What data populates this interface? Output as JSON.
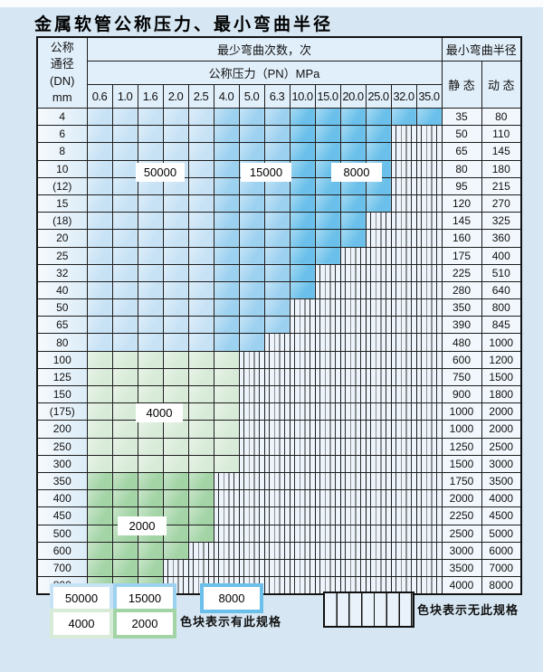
{
  "title": "金属软管公称压力、最小弯曲半径",
  "table": {
    "dn_header_lines": [
      "公称",
      "通径",
      "(DN)",
      "mm"
    ],
    "cycles_header": "最少弯曲次数，次",
    "pressure_header": "公称压力（PN）MPa",
    "radius_header": "最小弯曲半径",
    "static_label": "静 态",
    "dynamic_label": "动 态",
    "pressure_columns": [
      "0.6",
      "1.0",
      "1.6",
      "2.0",
      "2.5",
      "4.0",
      "5.0",
      "6.3",
      "10.0",
      "15.0",
      "20.0",
      "25.0",
      "32.0",
      "35.0"
    ],
    "cell_states": {
      "L": "50000次 (浅蓝)",
      "M": "15000次 (中蓝)",
      "D": "8000次 (深蓝)",
      "G": "4000次 (浅绿)",
      "H": "2000次 (中绿)",
      "X": "无此规格 (竖线)"
    },
    "rows": [
      {
        "dn": "4",
        "cells": "LLLLLMMMDDDDDD",
        "static": "35",
        "dynamic": "80"
      },
      {
        "dn": "6",
        "cells": "LLLLLMMMDDDDXX",
        "static": "50",
        "dynamic": "110"
      },
      {
        "dn": "8",
        "cells": "LLLLLMMMDDDDXX",
        "static": "65",
        "dynamic": "145"
      },
      {
        "dn": "10",
        "cells": "LLLLLMMMDDDDXX",
        "static": "80",
        "dynamic": "180"
      },
      {
        "dn": "(12)",
        "cells": "LLLLLMMMDDDDXX",
        "static": "95",
        "dynamic": "215"
      },
      {
        "dn": "15",
        "cells": "LLLLLMMMDDDDXX",
        "static": "120",
        "dynamic": "270"
      },
      {
        "dn": "(18)",
        "cells": "LLLLLMMMDDDXXX",
        "static": "145",
        "dynamic": "325"
      },
      {
        "dn": "20",
        "cells": "LLLLLMMMDDDXXX",
        "static": "160",
        "dynamic": "360"
      },
      {
        "dn": "25",
        "cells": "LLLLLMMMDDXXXX",
        "static": "175",
        "dynamic": "400"
      },
      {
        "dn": "32",
        "cells": "LLLLLMMMDXXXXX",
        "static": "225",
        "dynamic": "510"
      },
      {
        "dn": "40",
        "cells": "LLLLLMMMDXXXXX",
        "static": "280",
        "dynamic": "640"
      },
      {
        "dn": "50",
        "cells": "LLLLLMMMXXXXXX",
        "static": "350",
        "dynamic": "800"
      },
      {
        "dn": "65",
        "cells": "LLLLLMMMXXXXXX",
        "static": "390",
        "dynamic": "845"
      },
      {
        "dn": "80",
        "cells": "LLLLLMMXXXXXXX",
        "static": "480",
        "dynamic": "1000"
      },
      {
        "dn": "100",
        "cells": "GGGGGGXXXXXXXX",
        "static": "600",
        "dynamic": "1200"
      },
      {
        "dn": "125",
        "cells": "GGGGGGXXXXXXXX",
        "static": "750",
        "dynamic": "1500"
      },
      {
        "dn": "150",
        "cells": "GGGGGGXXXXXXXX",
        "static": "900",
        "dynamic": "1800"
      },
      {
        "dn": "(175)",
        "cells": "GGGGGGXXXXXXXX",
        "static": "1000",
        "dynamic": "2000"
      },
      {
        "dn": "200",
        "cells": "GGGGGGXXXXXXXX",
        "static": "1000",
        "dynamic": "2000"
      },
      {
        "dn": "250",
        "cells": "GGGGGGXXXXXXXX",
        "static": "1250",
        "dynamic": "2500"
      },
      {
        "dn": "300",
        "cells": "GGGGGGXXXXXXXX",
        "static": "1500",
        "dynamic": "3000"
      },
      {
        "dn": "350",
        "cells": "HHHHHXXXXXXXXX",
        "static": "1750",
        "dynamic": "3500"
      },
      {
        "dn": "400",
        "cells": "HHHHHXXXXXXXXX",
        "static": "2000",
        "dynamic": "4000"
      },
      {
        "dn": "450",
        "cells": "HHHHHXXXXXXXXX",
        "static": "2250",
        "dynamic": "4500"
      },
      {
        "dn": "500",
        "cells": "HHHHHXXXXXXXXX",
        "static": "2500",
        "dynamic": "5000"
      },
      {
        "dn": "600",
        "cells": "HHHHXXXXXXXXXX",
        "static": "3000",
        "dynamic": "6000"
      },
      {
        "dn": "700",
        "cells": "HHHXXXXXXXXXXX",
        "static": "3500",
        "dynamic": "7000"
      },
      {
        "dn": "800",
        "cells": "HHHXXXXXXXXXXX",
        "static": "4000",
        "dynamic": "8000"
      }
    ]
  },
  "overlays": [
    {
      "text": "50000"
    },
    {
      "text": "15000"
    },
    {
      "text": "8000"
    },
    {
      "text": "4000"
    },
    {
      "text": "2000"
    }
  ],
  "legend": {
    "items": [
      {
        "label": "50000",
        "swatch": "light_blue"
      },
      {
        "label": "15000",
        "swatch": "mid_blue"
      },
      {
        "label": "8000",
        "swatch": "dark_blue"
      },
      {
        "label": "4000",
        "swatch": "light_green"
      },
      {
        "label": "2000",
        "swatch": "mid_green"
      }
    ],
    "has_spec_text": "色块表示有此规格",
    "no_spec_text": "色块表示无此规格"
  },
  "colors": {
    "light_blue": "#c7e2f5",
    "mid_blue": "#9dd1f0",
    "dark_blue": "#6ac0ea",
    "light_green": "#d8ebd8",
    "mid_green": "#a3d4a6",
    "no_spec_bg": "#edf4fb",
    "grid": "#1d1d1d",
    "page_bg": "#d6e7f3"
  }
}
